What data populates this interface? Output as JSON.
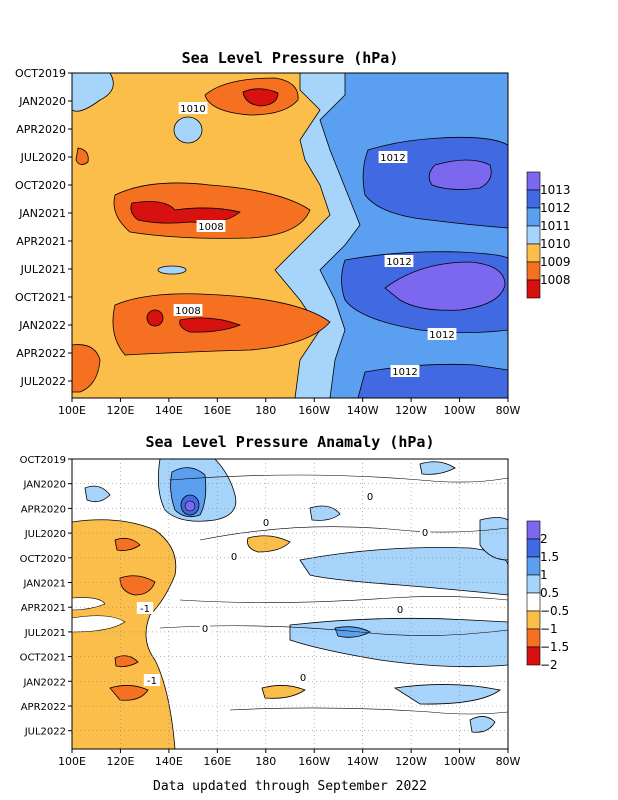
{
  "chart_data": [
    {
      "type": "heatmap",
      "title": "Sea Level Pressure (hPa)",
      "x_ticks": [
        "100E",
        "120E",
        "140E",
        "160E",
        "180",
        "160W",
        "140W",
        "120W",
        "100W",
        "80W"
      ],
      "y_ticks": [
        "OCT2019",
        "JAN2020",
        "APR2020",
        "JUL2020",
        "OCT2020",
        "JAN2021",
        "APR2021",
        "JUL2021",
        "OCT2021",
        "JAN2022",
        "APR2022",
        "JUL2022"
      ],
      "legend": {
        "labels": [
          "1013",
          "1012",
          "1011",
          "1010",
          "1009",
          "1008"
        ],
        "colors": [
          "#7b68ee",
          "#4169e1",
          "#5b9ff0",
          "#a7d4fb",
          "#fbbe4a",
          "#f57021",
          "#d71010"
        ]
      },
      "contour_labels": [
        "1010",
        "1012",
        "1008",
        "1012",
        "1008",
        "1012",
        "1012"
      ]
    },
    {
      "type": "heatmap",
      "title": "Sea Level Pressure Anamaly (hPa)",
      "x_ticks": [
        "100E",
        "120E",
        "140E",
        "160E",
        "180",
        "160W",
        "140W",
        "120W",
        "100W",
        "80W"
      ],
      "y_ticks": [
        "OCT2019",
        "JAN2020",
        "APR2020",
        "JUL2020",
        "OCT2020",
        "JAN2021",
        "APR2021",
        "JUL2021",
        "OCT2021",
        "JAN2022",
        "APR2022",
        "JUL2022"
      ],
      "legend": {
        "labels": [
          "2",
          "1.5",
          "1",
          "0.5",
          "−0.5",
          "−1",
          "−1.5",
          "−2"
        ],
        "colors": [
          "#7b68ee",
          "#4169e1",
          "#5b9ff0",
          "#a7d4fb",
          "#ffffff",
          "#fbbe4a",
          "#f57021",
          "#d71010"
        ]
      },
      "contour_labels": [
        "0",
        "0",
        "0",
        "0",
        "-1",
        "0",
        "0",
        "-1",
        "0"
      ]
    }
  ],
  "footer": "Data updated through September 2022"
}
